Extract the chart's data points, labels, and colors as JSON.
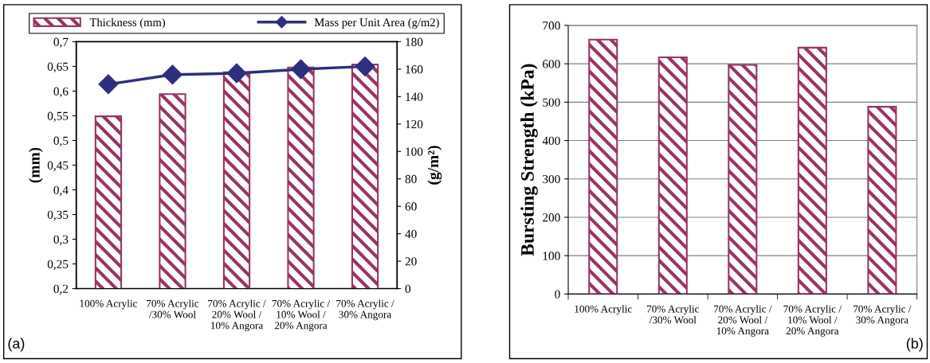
{
  "chart_data": [
    {
      "type": "bar",
      "ylabel": "(mm)",
      "y2label": "(g/m²)",
      "categories": [
        "100% Acrylic",
        "70% Acrylic\n/30% Wool",
        "70% Acrylic /\n20% Wool /\n10% Angora",
        "70% Acrylic /\n10% Wool /\n20% Angora",
        "70% Acrylic /\n30% Angora"
      ],
      "series": [
        {
          "name": "Thickness (mm)",
          "color": "#993366",
          "values": [
            0.549,
            0.594,
            0.638,
            0.648,
            0.654
          ]
        },
        {
          "name": "Mass per Unit Area (g/m2)",
          "type": "line",
          "axis": "y2",
          "color": "#2e2e80",
          "marker": "diamond",
          "line_style": "solid",
          "values": [
            149,
            156,
            157,
            160,
            162
          ]
        }
      ],
      "ylim": [
        0.2,
        0.7
      ],
      "yticks": [
        {
          "value": 0.2,
          "label": "0,2"
        },
        {
          "value": 0.25,
          "label": "0,25"
        },
        {
          "value": 0.3,
          "label": "0,3"
        },
        {
          "value": 0.35,
          "label": "0,35"
        },
        {
          "value": 0.4,
          "label": "0,4"
        },
        {
          "value": 0.45,
          "label": "0,45"
        },
        {
          "value": 0.5,
          "label": "0,5"
        },
        {
          "value": 0.55,
          "label": "0,55"
        },
        {
          "value": 0.6,
          "label": "0,6"
        },
        {
          "value": 0.65,
          "label": "0,65"
        },
        {
          "value": 0.7,
          "label": "0,7"
        }
      ],
      "y2lim": [
        0,
        180
      ],
      "y2ticks": [
        0,
        20,
        40,
        60,
        80,
        100,
        120,
        140,
        160,
        180
      ],
      "grid": false,
      "legend": "top",
      "annotations": [
        "(a)"
      ]
    },
    {
      "type": "bar",
      "ylabel": "Bursting Strength (kPa)",
      "categories": [
        "100% Acrylic",
        "70% Acrylic\n/30% Wool",
        "70% Acrylic /\n20% Wool /\n10% Angora",
        "70% Acrylic /\n10% Wool /\n20% Angora",
        "70% Acrylic /\n30% Angora"
      ],
      "series": [
        {
          "color": "#993366",
          "values": [
            663,
            617,
            597,
            642,
            488
          ]
        }
      ],
      "ylim": [
        0,
        700
      ],
      "yticks": [
        0,
        100,
        200,
        300,
        400,
        500,
        600,
        700
      ],
      "grid": "y",
      "annotations": [
        "(b)"
      ]
    }
  ]
}
